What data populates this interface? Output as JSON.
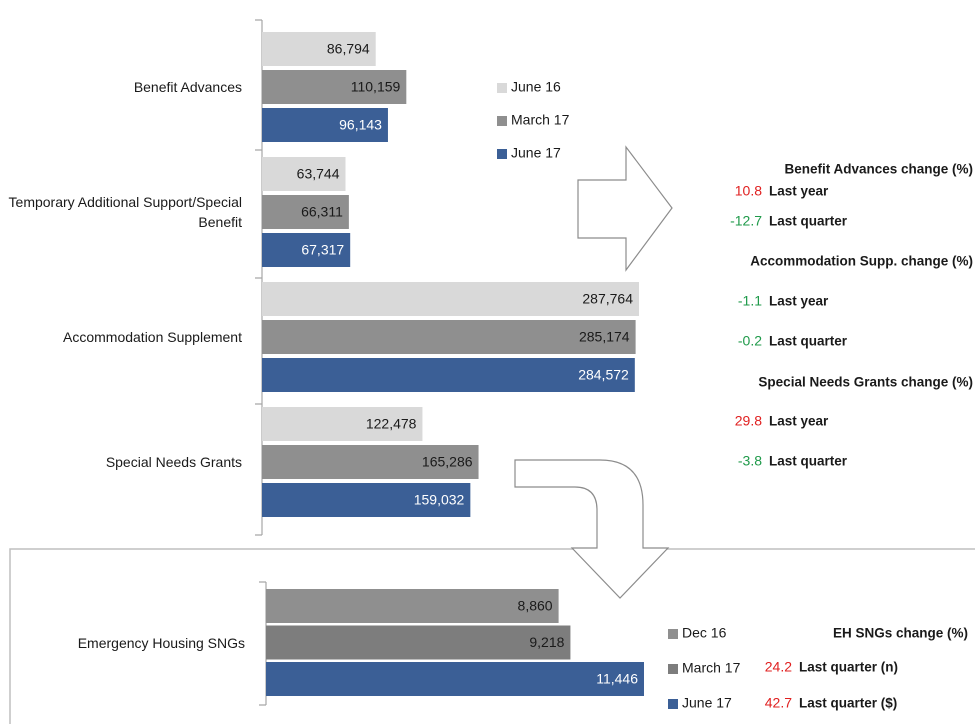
{
  "chart_data": [
    {
      "type": "bar",
      "categories": [
        "Benefit Advances",
        "Temporary Additional Support/Special Benefit",
        "Accommodation Supplement",
        "Special Needs Grants"
      ],
      "series": [
        {
          "name": "June 16",
          "color": "#d9d9d9",
          "label_color": "#1a1a1a",
          "values": [
            86794,
            63744,
            287764,
            122478
          ],
          "value_labels": [
            "86,794",
            "63,744",
            "287,764",
            "122,478"
          ]
        },
        {
          "name": "March 17",
          "color": "#8f8f8f",
          "label_color": "#1a1a1a",
          "values": [
            110159,
            66311,
            285174,
            165286
          ],
          "value_labels": [
            "110,159",
            "66,311",
            "285,174",
            "165,286"
          ]
        },
        {
          "name": "June 17",
          "color": "#3b5f96",
          "label_color": "#ffffff",
          "values": [
            96143,
            67317,
            284572,
            159032
          ],
          "value_labels": [
            "96,143",
            "67,317",
            "284,572",
            "159,032"
          ]
        }
      ]
    },
    {
      "type": "bar",
      "categories": [
        "Emergency Housing SNGs"
      ],
      "series": [
        {
          "name": "Dec 16",
          "color": "#8f8f8f",
          "label_color": "#1a1a1a",
          "values": [
            8860
          ],
          "value_labels": [
            "8,860"
          ]
        },
        {
          "name": "March 17",
          "color": "#7d7d7d",
          "label_color": "#1a1a1a",
          "values": [
            9218
          ],
          "value_labels": [
            "9,218"
          ]
        },
        {
          "name": "June 17",
          "color": "#3b5f96",
          "label_color": "#ffffff",
          "values": [
            11446
          ],
          "value_labels": [
            "11,446"
          ]
        }
      ]
    }
  ],
  "changes": [
    {
      "title": "Benefit Advances change (%)",
      "items": [
        {
          "value": 10.8,
          "label": "Last year",
          "color": "#e02020"
        },
        {
          "value": -12.7,
          "label": "Last quarter",
          "color": "#1f9a4a"
        }
      ]
    },
    {
      "title": "Accommodation Supp. change (%)",
      "items": [
        {
          "value": -1.1,
          "label": "Last year",
          "color": "#1f9a4a"
        },
        {
          "value": -0.2,
          "label": "Last quarter",
          "color": "#1f9a4a"
        }
      ]
    },
    {
      "title": "Special Needs Grants change (%)",
      "items": [
        {
          "value": 29.8,
          "label": "Last year",
          "color": "#e02020"
        },
        {
          "value": -3.8,
          "label": "Last quarter",
          "color": "#1f9a4a"
        }
      ]
    },
    {
      "title": "EH SNGs change (%)",
      "items": [
        {
          "value": 24.2,
          "label": "Last quarter (n)",
          "color": "#e02020"
        },
        {
          "value": 42.7,
          "label": "Last quarter ($)",
          "color": "#e02020"
        }
      ]
    }
  ]
}
